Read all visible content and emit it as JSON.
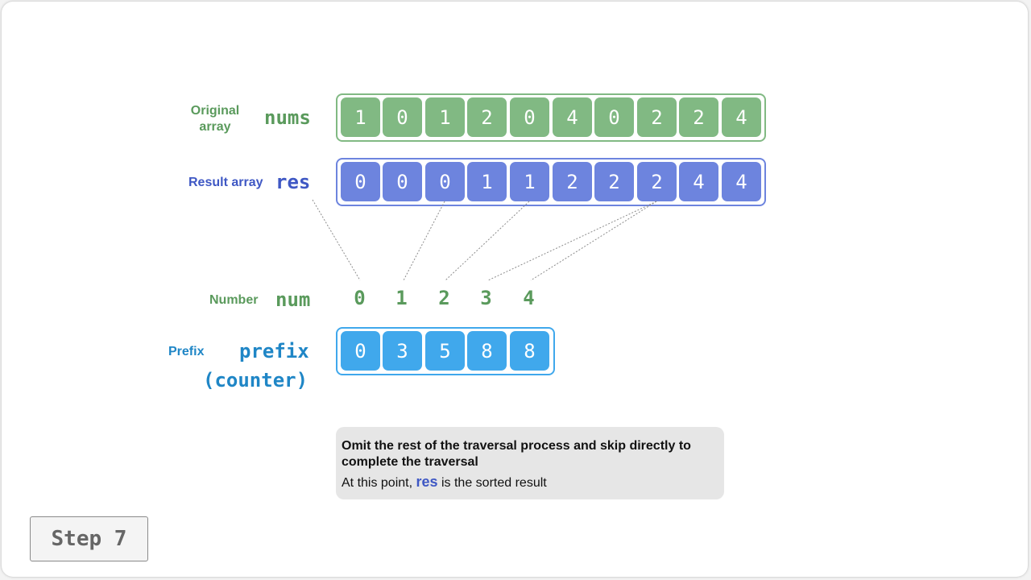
{
  "labels": {
    "original_array": "Original array",
    "nums": "nums",
    "result_array": "Result array",
    "res": "res",
    "number": "Number",
    "num": "num",
    "prefix": "Prefix",
    "prefix_code": "prefix",
    "counter_code": "(counter)"
  },
  "arrays": {
    "nums": [
      "1",
      "0",
      "1",
      "2",
      "0",
      "4",
      "0",
      "2",
      "2",
      "4"
    ],
    "res": [
      "0",
      "0",
      "0",
      "1",
      "1",
      "2",
      "2",
      "2",
      "4",
      "4"
    ],
    "num": [
      "0",
      "1",
      "2",
      "3",
      "4"
    ],
    "prefix": [
      "0",
      "3",
      "5",
      "8",
      "8"
    ]
  },
  "note": {
    "heading": "Omit the rest of the traversal process and skip directly to complete the traversal",
    "body_prefix": "At this point,",
    "body_highlight": "res",
    "body_suffix": "is the sorted result"
  },
  "step": "Step 7",
  "colors": {
    "green": "#81b983",
    "green_text": "#5a9a5c",
    "blue": "#6d84de",
    "blue_text": "#3f58c4",
    "cyan": "#40a8ec",
    "cyan_text": "#1f86c6"
  }
}
